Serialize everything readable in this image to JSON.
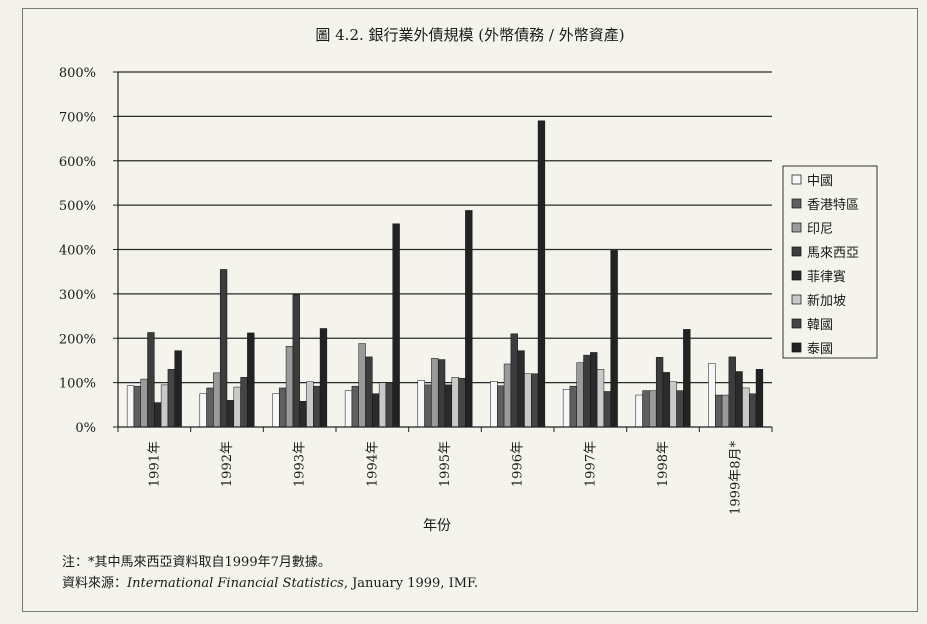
{
  "colors": {
    "background": "#f4f3ec",
    "gridline": "#2a2a2a",
    "series": [
      "#f7f7f7",
      "#5f5f5f",
      "#9a9a9a",
      "#3c3c3c",
      "#2b2b2b",
      "#c9c9c9",
      "#454545",
      "#222222"
    ]
  },
  "chart_data": {
    "type": "bar",
    "title": "圖 4.2. 銀行業外債規模 (外幣債務 / 外幣資產)",
    "xlabel": "年份",
    "ylabel": "",
    "ylim": [
      0,
      800
    ],
    "yticks": [
      "0%",
      "100%",
      "200%",
      "300%",
      "400%",
      "500%",
      "600%",
      "700%",
      "800%"
    ],
    "grid": true,
    "legend_position": "right",
    "categories": [
      "1991年",
      "1992年",
      "1993年",
      "1994年",
      "1995年",
      "1996年",
      "1997年",
      "1998年",
      "1999年8月*"
    ],
    "series": [
      {
        "name": "中國",
        "values": [
          93,
          75,
          75,
          82,
          105,
          103,
          85,
          72,
          143
        ]
      },
      {
        "name": "香港特區",
        "values": [
          92,
          88,
          88,
          92,
          95,
          93,
          92,
          82,
          72
        ]
      },
      {
        "name": "印尼",
        "values": [
          108,
          122,
          182,
          188,
          155,
          142,
          145,
          82,
          72
        ]
      },
      {
        "name": "馬來西亞",
        "values": [
          213,
          355,
          298,
          158,
          152,
          210,
          162,
          157,
          158
        ]
      },
      {
        "name": "菲律賓",
        "values": [
          55,
          60,
          58,
          75,
          95,
          172,
          168,
          123,
          125
        ]
      },
      {
        "name": "新加坡",
        "values": [
          95,
          90,
          102,
          100,
          112,
          120,
          130,
          102,
          88
        ]
      },
      {
        "name": "韓國",
        "values": [
          130,
          112,
          92,
          98,
          110,
          120,
          80,
          82,
          75
        ]
      },
      {
        "name": "泰國",
        "values": [
          172,
          212,
          222,
          458,
          488,
          690,
          398,
          220,
          130
        ]
      }
    ]
  },
  "footnote": {
    "note": "注：*其中馬來西亞資料取自1999年7月數據。",
    "source_prefix": "資料來源：",
    "source_publication": "International Financial Statistics",
    "source_suffix": ", January 1999, IMF."
  }
}
